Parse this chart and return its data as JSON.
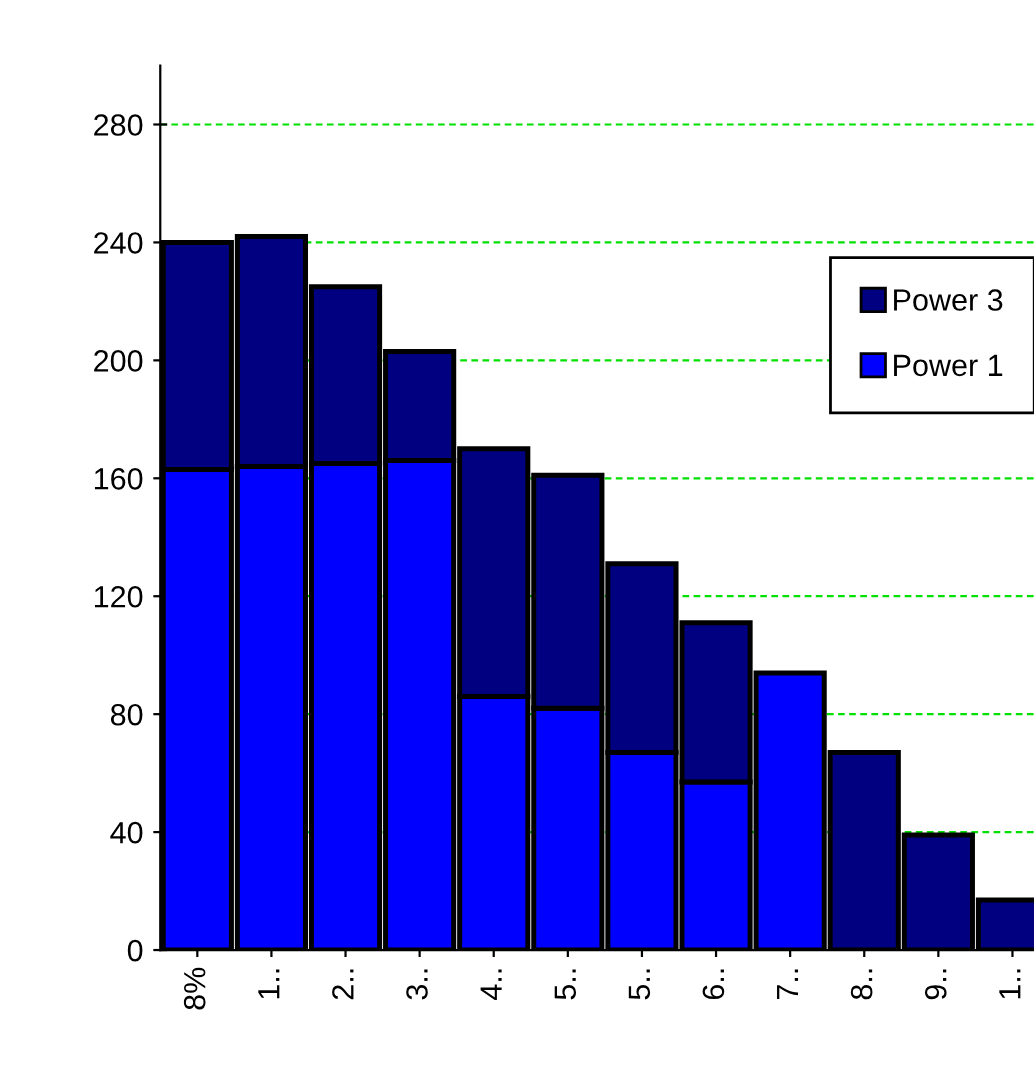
{
  "chart_data": {
    "type": "bar",
    "stacked": true,
    "categories": [
      "8%",
      "1..",
      "2..",
      "3..",
      "4..",
      "5..",
      "5..",
      "6..",
      "7..",
      "8..",
      "9..",
      "1.."
    ],
    "series": [
      {
        "name": "Power 1",
        "color": "#0000ff",
        "values": [
          163,
          164,
          165,
          166,
          86,
          82,
          67,
          57,
          94,
          0,
          0,
          0
        ]
      },
      {
        "name": "Power 3",
        "color": "#000080",
        "values": [
          77,
          78,
          60,
          37,
          84,
          79,
          64,
          54,
          0,
          67,
          39,
          17
        ]
      }
    ],
    "ylim": [
      0,
      300
    ],
    "yticks": [
      0,
      40,
      80,
      120,
      160,
      200,
      240,
      280
    ],
    "grid": "y",
    "legend": "top right"
  }
}
